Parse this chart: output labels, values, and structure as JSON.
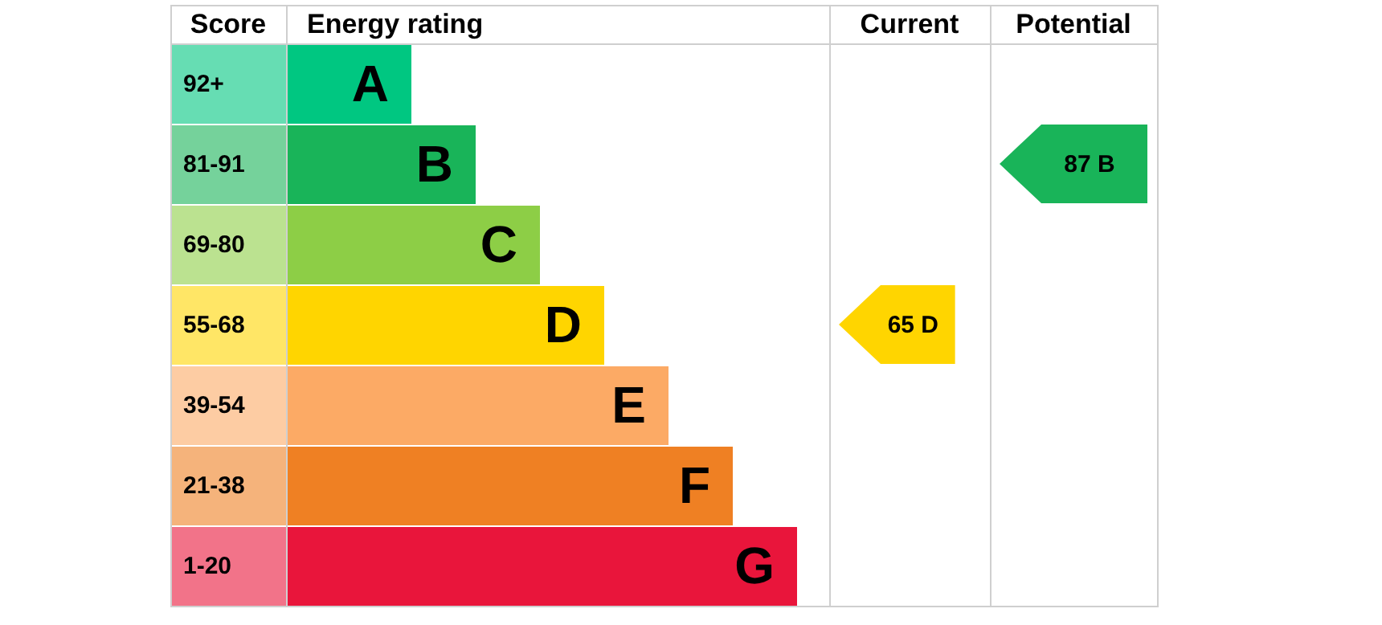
{
  "chart_data": {
    "type": "other",
    "xlabel": "Energy rating",
    "ylabel": "Score",
    "annotations": [
      "Current",
      "Potential"
    ],
    "categories": [
      "A",
      "B",
      "C",
      "D",
      "E",
      "F",
      "G"
    ],
    "y_categories": [
      "92+",
      "81-91",
      "69-80",
      "55-68",
      "39-54",
      "21-38",
      "1-20"
    ],
    "colors": [
      "#00c781",
      "#19b459",
      "#8dce46",
      "#ffd500",
      "#fcaa65",
      "#ef8023",
      "#e9153b"
    ],
    "series": [
      {
        "color": "#ffd500",
        "values": [
          null,
          null,
          null,
          65,
          null,
          null,
          null
        ],
        "value_labels": [
          null,
          null,
          null,
          "65 D",
          null,
          null,
          null
        ]
      },
      {
        "color": "#19b459",
        "values": [
          null,
          87,
          null,
          null,
          null,
          null,
          null
        ],
        "value_labels": [
          null,
          "87 B",
          null,
          null,
          null,
          null,
          null
        ]
      }
    ]
  }
}
